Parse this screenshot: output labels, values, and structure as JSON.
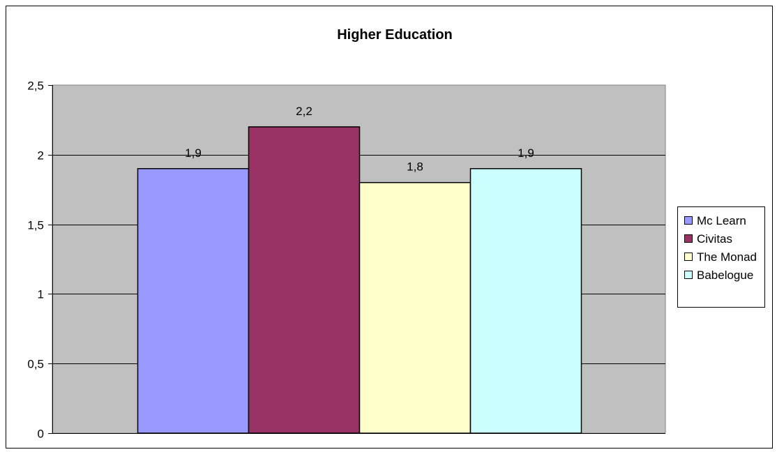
{
  "chart_data": {
    "type": "bar",
    "title": "Higher Education",
    "xlabel": "",
    "ylabel": "",
    "ylim": [
      0,
      2.5
    ],
    "yticks": [
      0,
      0.5,
      1,
      1.5,
      2,
      2.5
    ],
    "ytick_labels": [
      "0",
      "0,5",
      "1",
      "1,5",
      "2",
      "2,5"
    ],
    "grid": true,
    "legend_position": "right",
    "plot_background": "#c0c0c0",
    "series": [
      {
        "name": "Mc Learn",
        "values": [
          1.9
        ],
        "label": "1,9",
        "color": "#9999ff"
      },
      {
        "name": "Civitas",
        "values": [
          2.2
        ],
        "label": "2,2",
        "color": "#993366"
      },
      {
        "name": "The Monad",
        "values": [
          1.8
        ],
        "label": "1,8",
        "color": "#ffffcc"
      },
      {
        "name": "Babelogue",
        "values": [
          1.9
        ],
        "label": "1,9",
        "color": "#ccffff"
      }
    ]
  }
}
